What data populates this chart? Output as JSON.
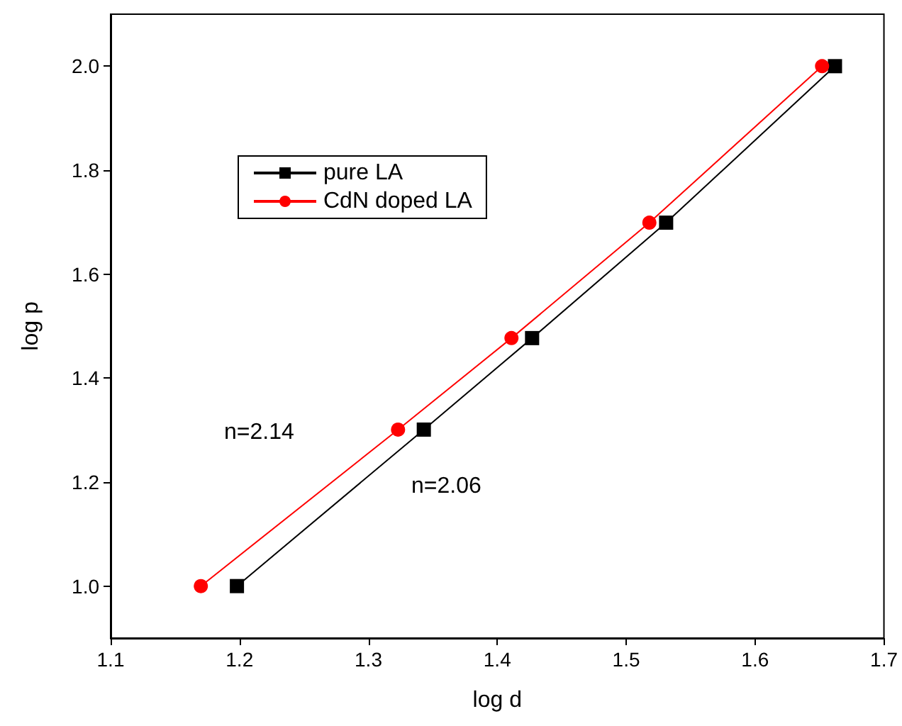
{
  "chart_data": {
    "type": "line",
    "xlabel": "log d",
    "ylabel": "log p",
    "xlim": [
      1.1,
      1.7
    ],
    "xticks": [
      1.1,
      1.2,
      1.3,
      1.4,
      1.5,
      1.6,
      1.7
    ],
    "ylim": [
      0.9,
      2.1
    ],
    "yticks": [
      {
        "value": 1,
        "label": "1.0"
      },
      1.2,
      1.4,
      1.6,
      1.8,
      {
        "value": 2,
        "label": "2.0"
      }
    ],
    "grid": false,
    "legend": "top left",
    "line_style": "solid",
    "series": [
      {
        "name": "pure LA",
        "color": "#000000",
        "marker": "square",
        "x": [
          1.198,
          1.343,
          1.427,
          1.531,
          1.662
        ],
        "values": [
          1.0,
          1.301,
          1.477,
          1.699,
          2.0
        ]
      },
      {
        "name": "CdN doped LA",
        "color": "#ff0000",
        "marker": "circle",
        "x": [
          1.17,
          1.323,
          1.411,
          1.518,
          1.652
        ],
        "values": [
          1.0,
          1.301,
          1.477,
          1.699,
          2.0
        ]
      }
    ],
    "annotations": [
      "n=2.14",
      "n=2.06"
    ]
  }
}
